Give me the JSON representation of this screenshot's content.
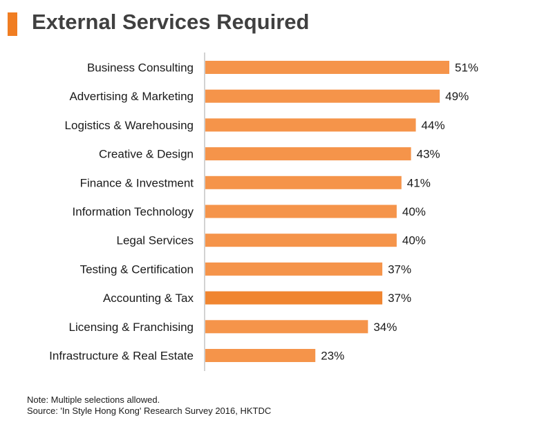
{
  "title": "External Services Required",
  "accent_color": "#f07d22",
  "bar_color": "#f5944a",
  "highlight_bar_color": "#f08530",
  "notes": {
    "note": "Note: Multiple selections allowed.",
    "source": "Source: 'In Style Hong Kong' Research Survey 2016, HKTDC"
  },
  "chart_data": {
    "type": "bar",
    "orientation": "horizontal",
    "title": "External Services Required",
    "xlabel": "",
    "ylabel": "",
    "xlim": [
      0,
      51
    ],
    "value_suffix": "%",
    "grid": false,
    "categories": [
      "Business Consulting",
      "Advertising & Marketing",
      "Logistics & Warehousing",
      "Creative & Design",
      "Finance & Investment",
      "Information Technology",
      "Legal Services",
      "Testing & Certification",
      "Accounting & Tax",
      "Licensing & Franchising",
      "Infrastructure & Real Estate"
    ],
    "values": [
      51,
      49,
      44,
      43,
      41,
      40,
      40,
      37,
      37,
      34,
      23
    ],
    "highlighted_category": "Accounting & Tax"
  }
}
